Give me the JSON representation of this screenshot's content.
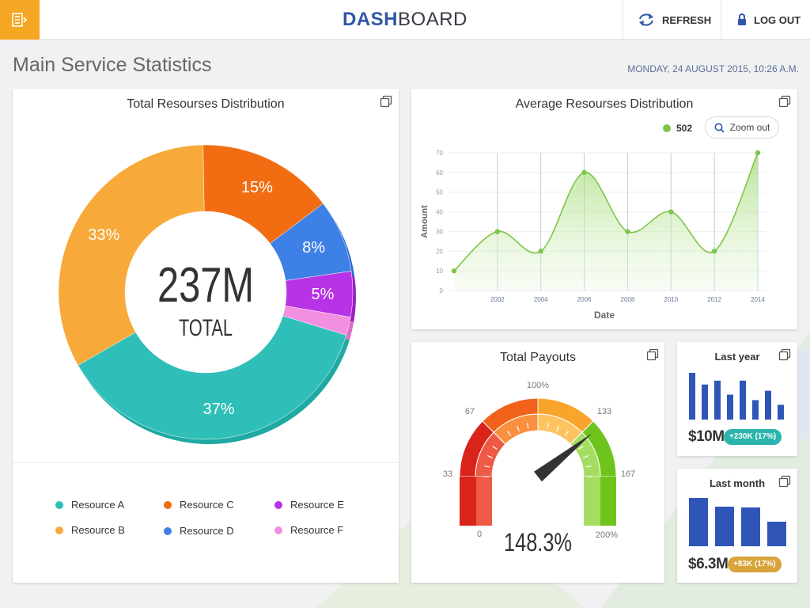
{
  "header": {
    "brand_bold": "DASH",
    "brand_light": "BOARD",
    "refresh_label": "REFRESH",
    "logout_label": "LOG OUT"
  },
  "page": {
    "title": "Main Service Statistics",
    "datetime": "MONDAY, 24 AUGUST 2015, 10:26 A.M."
  },
  "colors": {
    "accent": "#f5a623",
    "brand_blue": "#2f56a8",
    "resource_a": "#2fbfb8",
    "resource_b": "#f7a93a",
    "resource_c": "#f26d12",
    "resource_d": "#3d80e6",
    "resource_e": "#b833e6",
    "resource_f": "#f38fe0",
    "line_green": "#7ec64a",
    "bar_blue": "#2f56b6"
  },
  "donut": {
    "title": "Total Resourses Distribution",
    "center_value": "237M",
    "center_label": "TOTAL",
    "slices": [
      {
        "name": "Resource A",
        "label": "37%",
        "value": 37
      },
      {
        "name": "Resource B",
        "label": "33%",
        "value": 33
      },
      {
        "name": "Resource C",
        "label": "15%",
        "value": 15
      },
      {
        "name": "Resource D",
        "label": "8%",
        "value": 8
      },
      {
        "name": "Resource E",
        "label": "5%",
        "value": 5
      },
      {
        "name": "Resource F",
        "label": "",
        "value": 2
      }
    ],
    "legend": [
      "Resource A",
      "Resource B",
      "Resource C",
      "Resource D",
      "Resource E",
      "Resource F"
    ]
  },
  "line_chart": {
    "title": "Average Resourses Distribution",
    "series_value": "502",
    "zoom_label": "Zoom out",
    "chart_data": {
      "type": "line",
      "title": "Average Resourses Distribution",
      "xlabel": "Date",
      "ylabel": "Amount",
      "x": [
        2000,
        2002,
        2004,
        2006,
        2008,
        2010,
        2012,
        2014
      ],
      "y": [
        10,
        30,
        20,
        60,
        30,
        40,
        20,
        70
      ],
      "xticks": [
        "2002",
        "2004",
        "2006",
        "2008",
        "2010",
        "2012",
        "2014"
      ],
      "yticks": [
        "0",
        "10",
        "20",
        "30",
        "40",
        "50",
        "60",
        "70"
      ],
      "ylim": [
        0,
        70
      ],
      "xlim": [
        2000,
        2014
      ],
      "legend": "502"
    }
  },
  "gauge": {
    "title": "Total Payouts",
    "value_label": "148.3%",
    "value_pct": 148.3,
    "ticks": [
      "0",
      "33",
      "67",
      "100%",
      "133",
      "167",
      "200%"
    ]
  },
  "last_year": {
    "title": "Last year",
    "amount": "$10M",
    "badge": "+230K (17%)",
    "bars": [
      60,
      45,
      50,
      32,
      50,
      25,
      37,
      19
    ]
  },
  "last_month": {
    "title": "Last month",
    "amount": "$6.3M",
    "badge": "+83K (17%)",
    "bars": [
      61,
      50,
      49,
      31
    ]
  }
}
